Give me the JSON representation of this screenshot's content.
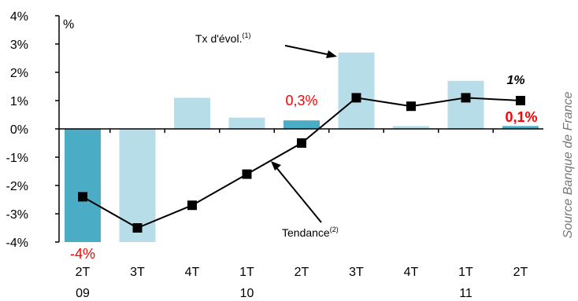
{
  "chart_data": {
    "type": "bar",
    "unit_label": "%",
    "categories": [
      "2T",
      "3T",
      "4T",
      "1T",
      "2T",
      "3T",
      "4T",
      "1T",
      "2T"
    ],
    "year_labels": [
      {
        "index": 0,
        "label": "09"
      },
      {
        "index": 3,
        "label": "10"
      },
      {
        "index": 7,
        "label": "11"
      }
    ],
    "series": [
      {
        "name": "Tx d'évol.(1)",
        "type": "bar",
        "values": [
          -4.0,
          -4.0,
          1.1,
          0.4,
          0.3,
          2.7,
          0.1,
          1.7,
          0.1
        ],
        "colors": [
          "#4bacc6",
          "#b7dee8",
          "#b7dee8",
          "#b7dee8",
          "#4bacc6",
          "#b7dee8",
          "#b7dee8",
          "#b7dee8",
          "#4bacc6"
        ]
      },
      {
        "name": "Tendance(2)",
        "type": "line",
        "values": [
          -2.4,
          -3.5,
          -2.7,
          -1.6,
          -0.5,
          1.1,
          0.8,
          1.1,
          1.0
        ],
        "color": "#000000"
      }
    ],
    "yticks": [
      "4%",
      "3%",
      "2%",
      "1%",
      "0%",
      "-1%",
      "-2%",
      "-3%",
      "-4%"
    ],
    "ylim": [
      -4,
      4
    ],
    "grid": false,
    "annotations": {
      "bar_tx_label": "Tx d'évol.",
      "bar_tx_sup": "(1)",
      "line_label": "Tendance",
      "line_sup": "(2)",
      "first_bar_value": "-4%",
      "mid_bar_value": "0,3%",
      "last_bar_value": "0,1%",
      "last_trend_value": "1%",
      "highlight_color": "#ff0000"
    },
    "source": "Source Banque de France"
  }
}
